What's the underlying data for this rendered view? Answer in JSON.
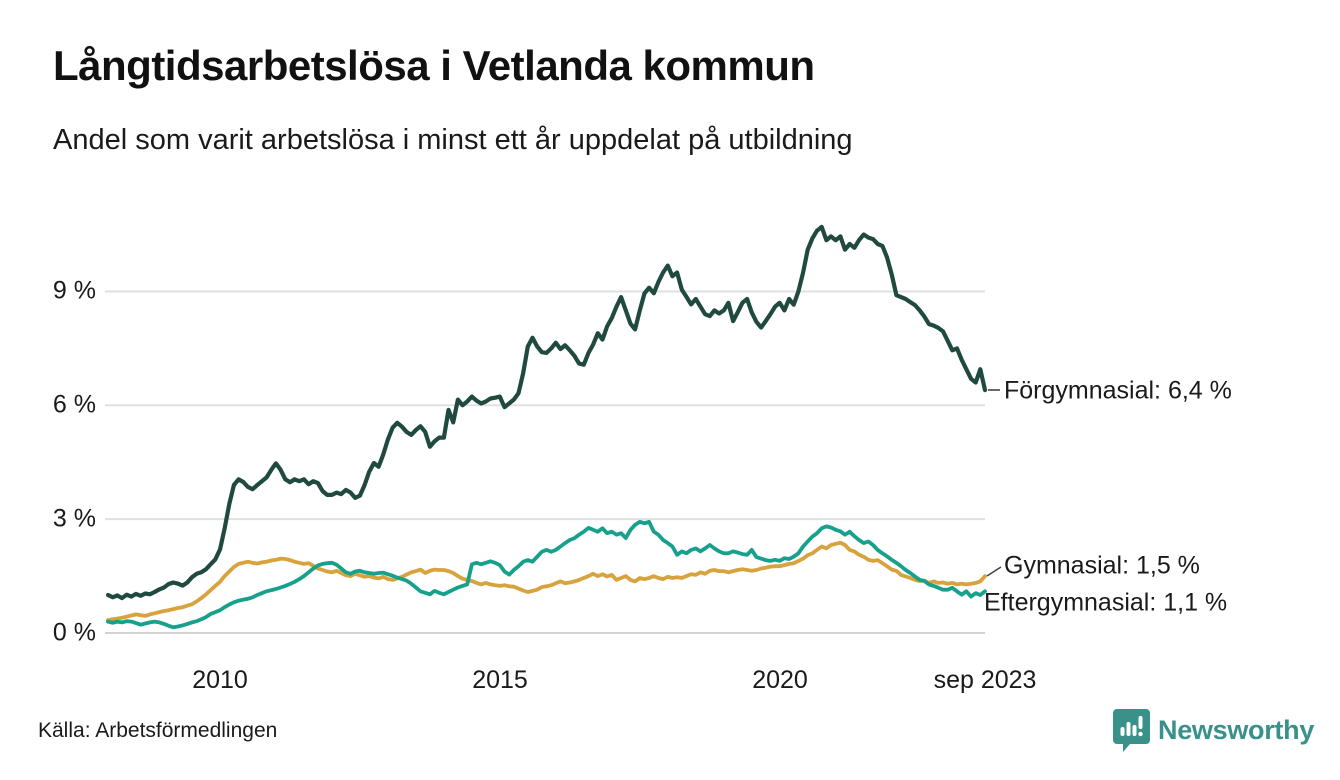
{
  "header": {
    "title": "Långtidsarbetslösa i Vetlanda kommun",
    "subtitle": "Andel som varit arbetslösa i minst ett år uppdelat på utbildning"
  },
  "footer": {
    "source_label": "Källa: Arbetsförmedlingen",
    "brand": {
      "name": "Newsworthy",
      "icon": "newsworthy-speech-bubble-bar-chart-icon",
      "color": "#38918a"
    }
  },
  "chart_data": {
    "type": "line",
    "title": "Långtidsarbetslösa i Vetlanda kommun",
    "subtitle": "Andel som varit arbetslösa i minst ett år uppdelat på utbildning",
    "unit": "%",
    "grid": "horizontal",
    "grid_color": "#e0e0e0",
    "zero_line_color": "#d2d2d2",
    "x_domain": [
      2008.0,
      2023.667
    ],
    "ylim": [
      0,
      11.5
    ],
    "points_per_year": 12,
    "x_start": 2008.0,
    "x_ticks": [
      {
        "value": 2010,
        "label": "2010"
      },
      {
        "value": 2015,
        "label": "2015"
      },
      {
        "value": 2020,
        "label": "2020"
      },
      {
        "value": 2023.667,
        "label": "sep 2023"
      }
    ],
    "y_ticks": [
      {
        "value": 0,
        "label": "0 %"
      },
      {
        "value": 3,
        "label": "3 %"
      },
      {
        "value": 6,
        "label": "6 %"
      },
      {
        "value": 9,
        "label": "9 %"
      }
    ],
    "series": [
      {
        "name": "Förgymnasial",
        "color": "#20493f",
        "end_label": "Förgymnasial: 6,4 %",
        "end_value": 6.4,
        "values": [
          1.0,
          0.94,
          0.99,
          0.92,
          1.01,
          0.96,
          1.03,
          0.98,
          1.04,
          1.02,
          1.08,
          1.15,
          1.2,
          1.29,
          1.33,
          1.3,
          1.25,
          1.33,
          1.47,
          1.56,
          1.6,
          1.68,
          1.81,
          1.94,
          2.2,
          2.75,
          3.4,
          3.9,
          4.05,
          3.98,
          3.85,
          3.79,
          3.9,
          4.0,
          4.1,
          4.3,
          4.47,
          4.3,
          4.05,
          3.97,
          4.05,
          4.0,
          4.05,
          3.92,
          4.0,
          3.95,
          3.74,
          3.64,
          3.64,
          3.7,
          3.66,
          3.77,
          3.7,
          3.56,
          3.62,
          3.9,
          4.25,
          4.48,
          4.38,
          4.7,
          5.1,
          5.41,
          5.54,
          5.44,
          5.3,
          5.22,
          5.35,
          5.45,
          5.3,
          4.91,
          5.05,
          5.15,
          5.15,
          5.88,
          5.55,
          6.15,
          6.0,
          6.1,
          6.23,
          6.12,
          6.05,
          6.1,
          6.18,
          6.2,
          6.23,
          5.95,
          6.05,
          6.15,
          6.32,
          6.85,
          7.55,
          7.78,
          7.55,
          7.4,
          7.38,
          7.5,
          7.65,
          7.48,
          7.58,
          7.45,
          7.3,
          7.1,
          7.07,
          7.38,
          7.6,
          7.9,
          7.73,
          8.08,
          8.3,
          8.6,
          8.85,
          8.5,
          8.15,
          8.0,
          8.5,
          8.95,
          9.1,
          8.95,
          9.25,
          9.5,
          9.68,
          9.4,
          9.5,
          9.05,
          8.86,
          8.66,
          8.8,
          8.6,
          8.4,
          8.35,
          8.5,
          8.42,
          8.5,
          8.7,
          8.22,
          8.45,
          8.7,
          8.8,
          8.45,
          8.2,
          8.05,
          8.22,
          8.4,
          8.6,
          8.7,
          8.5,
          8.8,
          8.65,
          9.0,
          9.5,
          10.1,
          10.4,
          10.6,
          10.7,
          10.35,
          10.45,
          10.35,
          10.45,
          10.1,
          10.25,
          10.15,
          10.35,
          10.5,
          10.42,
          10.38,
          10.25,
          10.2,
          9.9,
          9.45,
          8.9,
          8.85,
          8.8,
          8.72,
          8.64,
          8.5,
          8.34,
          8.14,
          8.1,
          8.04,
          7.95,
          7.7,
          7.45,
          7.5,
          7.2,
          6.95,
          6.7,
          6.6,
          6.95,
          6.4
        ]
      },
      {
        "name": "Gymnasial",
        "color": "#d8a23c",
        "end_label": "Gymnasial: 1,5 %",
        "end_value": 1.5,
        "values": [
          0.34,
          0.36,
          0.38,
          0.4,
          0.43,
          0.46,
          0.49,
          0.47,
          0.45,
          0.49,
          0.52,
          0.55,
          0.58,
          0.6,
          0.63,
          0.66,
          0.68,
          0.72,
          0.76,
          0.83,
          0.92,
          1.02,
          1.13,
          1.24,
          1.35,
          1.5,
          1.62,
          1.74,
          1.82,
          1.85,
          1.88,
          1.85,
          1.83,
          1.86,
          1.88,
          1.91,
          1.93,
          1.96,
          1.95,
          1.92,
          1.88,
          1.85,
          1.82,
          1.84,
          1.77,
          1.7,
          1.66,
          1.62,
          1.6,
          1.64,
          1.58,
          1.52,
          1.5,
          1.56,
          1.52,
          1.48,
          1.5,
          1.46,
          1.44,
          1.48,
          1.42,
          1.4,
          1.44,
          1.48,
          1.54,
          1.6,
          1.63,
          1.67,
          1.58,
          1.64,
          1.67,
          1.66,
          1.66,
          1.63,
          1.58,
          1.5,
          1.43,
          1.4,
          1.37,
          1.32,
          1.28,
          1.32,
          1.28,
          1.26,
          1.24,
          1.26,
          1.23,
          1.22,
          1.17,
          1.12,
          1.08,
          1.11,
          1.14,
          1.21,
          1.23,
          1.26,
          1.31,
          1.36,
          1.31,
          1.33,
          1.36,
          1.4,
          1.45,
          1.5,
          1.56,
          1.5,
          1.55,
          1.49,
          1.53,
          1.4,
          1.45,
          1.5,
          1.4,
          1.36,
          1.45,
          1.42,
          1.45,
          1.5,
          1.45,
          1.42,
          1.48,
          1.45,
          1.47,
          1.45,
          1.5,
          1.55,
          1.53,
          1.6,
          1.56,
          1.64,
          1.66,
          1.63,
          1.63,
          1.6,
          1.63,
          1.66,
          1.68,
          1.66,
          1.64,
          1.66,
          1.7,
          1.72,
          1.75,
          1.76,
          1.76,
          1.79,
          1.82,
          1.84,
          1.9,
          1.96,
          2.05,
          2.1,
          2.19,
          2.28,
          2.23,
          2.32,
          2.35,
          2.38,
          2.32,
          2.19,
          2.15,
          2.06,
          2.01,
          1.93,
          1.9,
          1.92,
          1.84,
          1.76,
          1.67,
          1.64,
          1.53,
          1.49,
          1.45,
          1.4,
          1.37,
          1.38,
          1.32,
          1.36,
          1.32,
          1.33,
          1.3,
          1.32,
          1.28,
          1.3,
          1.28,
          1.3,
          1.32,
          1.36,
          1.5
        ]
      },
      {
        "name": "Eftergymnasial",
        "color": "#17a08b",
        "end_label": "Eftergymnasial: 1,1 %",
        "end_value": 1.1,
        "values": [
          0.3,
          0.27,
          0.3,
          0.28,
          0.31,
          0.3,
          0.26,
          0.22,
          0.25,
          0.28,
          0.3,
          0.28,
          0.24,
          0.19,
          0.15,
          0.17,
          0.2,
          0.24,
          0.28,
          0.31,
          0.36,
          0.42,
          0.5,
          0.55,
          0.6,
          0.68,
          0.75,
          0.81,
          0.85,
          0.88,
          0.9,
          0.94,
          1.0,
          1.05,
          1.1,
          1.13,
          1.16,
          1.2,
          1.24,
          1.29,
          1.35,
          1.42,
          1.5,
          1.6,
          1.7,
          1.78,
          1.82,
          1.84,
          1.85,
          1.8,
          1.7,
          1.6,
          1.56,
          1.62,
          1.64,
          1.6,
          1.58,
          1.56,
          1.58,
          1.59,
          1.55,
          1.51,
          1.46,
          1.42,
          1.38,
          1.3,
          1.2,
          1.1,
          1.06,
          1.02,
          1.11,
          1.06,
          1.02,
          1.08,
          1.14,
          1.2,
          1.24,
          1.28,
          1.81,
          1.85,
          1.81,
          1.85,
          1.89,
          1.85,
          1.79,
          1.62,
          1.54,
          1.66,
          1.76,
          1.88,
          1.92,
          1.88,
          2.01,
          2.14,
          2.19,
          2.14,
          2.19,
          2.28,
          2.37,
          2.45,
          2.5,
          2.59,
          2.67,
          2.77,
          2.72,
          2.67,
          2.76,
          2.63,
          2.67,
          2.59,
          2.63,
          2.5,
          2.72,
          2.85,
          2.93,
          2.89,
          2.93,
          2.67,
          2.59,
          2.45,
          2.37,
          2.28,
          2.06,
          2.15,
          2.1,
          2.19,
          2.23,
          2.15,
          2.23,
          2.32,
          2.23,
          2.15,
          2.1,
          2.1,
          2.15,
          2.12,
          2.08,
          2.06,
          2.19,
          2.0,
          1.96,
          1.92,
          1.9,
          1.93,
          1.9,
          1.97,
          1.95,
          2.01,
          2.1,
          2.28,
          2.41,
          2.54,
          2.63,
          2.76,
          2.81,
          2.78,
          2.72,
          2.68,
          2.59,
          2.67,
          2.55,
          2.45,
          2.37,
          2.41,
          2.32,
          2.19,
          2.1,
          2.02,
          1.93,
          1.85,
          1.76,
          1.66,
          1.58,
          1.49,
          1.4,
          1.37,
          1.28,
          1.24,
          1.19,
          1.14,
          1.14,
          1.19,
          1.1,
          1.01,
          1.1,
          0.96,
          1.05,
          1.0,
          1.1
        ]
      }
    ]
  }
}
